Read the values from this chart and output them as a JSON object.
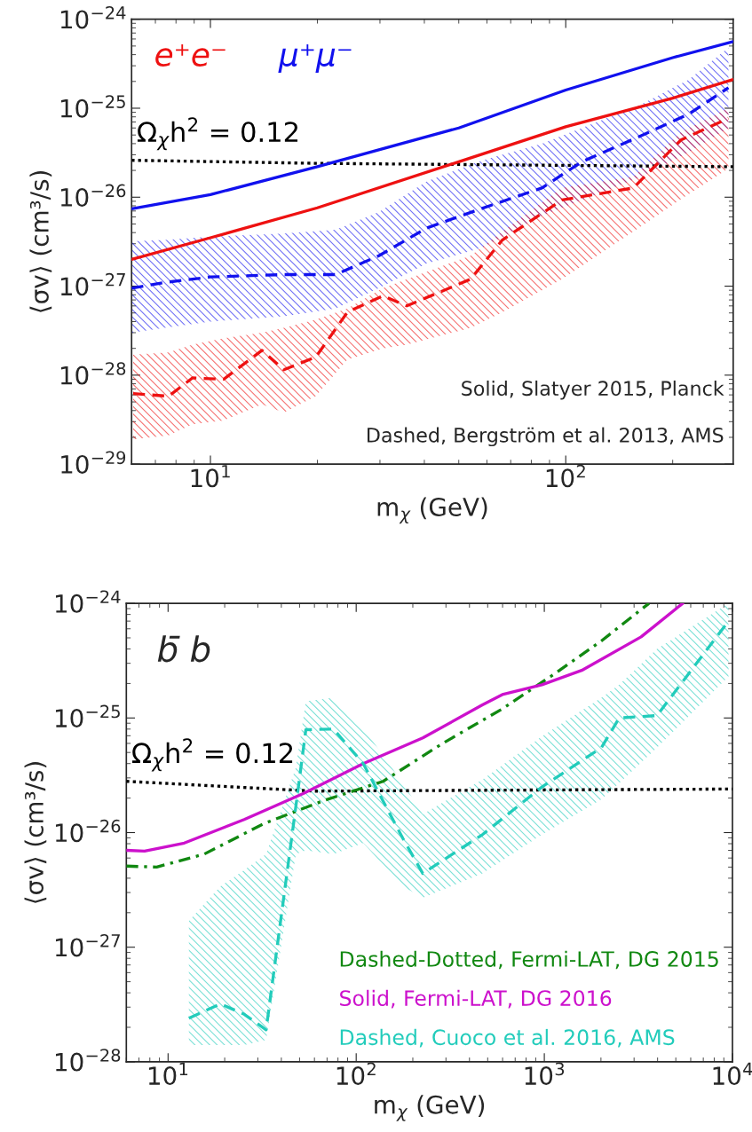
{
  "chart_data": [
    {
      "type": "line",
      "xlabel": "m$_{χ}$ (GeV)",
      "ylabel": "⟨σv⟩ (cm³/s)",
      "log": "xy",
      "xlim": [
        6,
        296
      ],
      "xticks": [
        {
          "value": 10,
          "label": "10$^{1}$"
        },
        {
          "value": 100,
          "label": "10$^{2}$"
        }
      ],
      "ylim": [
        1e-29,
        1e-24
      ],
      "yticks": [
        {
          "value": 1e-29,
          "label": "10$^{−29}$"
        },
        {
          "value": 1e-28,
          "label": "10$^{−28}$"
        },
        {
          "value": 1e-27,
          "label": "10$^{−27}$"
        },
        {
          "value": 1e-26,
          "label": "10$^{−26}$"
        },
        {
          "value": 1e-25,
          "label": "10$^{−25}$"
        },
        {
          "value": 1e-24,
          "label": "10$^{−24}$"
        }
      ],
      "grid": false,
      "legend": "top left",
      "series": [
        {
          "name": "Ω$_{χ}$h$^{2}$ = 0.12",
          "color": "#000000",
          "line_style": "dotted",
          "x": [
            6,
            20,
            296
          ],
          "values": [
            2.6e-26,
            2.4e-26,
            2.2e-26
          ]
        },
        {
          "name": "e⁺e⁻",
          "color": "#ee1111",
          "line_style": "solid",
          "x": [
            6,
            10,
            20,
            50,
            100,
            200,
            296
          ],
          "values": [
            2e-27,
            3.5e-27,
            7.6e-27,
            2.5e-26,
            6.2e-26,
            1.3e-25,
            2.1e-25
          ]
        },
        {
          "name": "μ⁺μ⁻",
          "color": "#1111ee",
          "line_style": "solid",
          "x": [
            6,
            10,
            20,
            50,
            100,
            200,
            296
          ],
          "values": [
            7.4e-27,
            1.07e-26,
            2.2e-26,
            6e-26,
            1.6e-25,
            3.7e-25,
            5.6e-25
          ]
        },
        {
          "color": "#1111ee",
          "line_style": "dashed",
          "x": [
            6.0,
            7.44,
            10,
            16.1,
            22.5,
            29.8,
            40.6,
            58.2,
            85.7,
            111,
            163,
            222,
            287
          ],
          "values": [
            9.5e-28,
            1.1e-27,
            1.27e-27,
            1.35e-27,
            1.35e-27,
            2.2e-27,
            4.5e-27,
            7.5e-27,
            1.27e-26,
            2.5e-26,
            4.9e-26,
            8.6e-26,
            1.7e-25
          ],
          "upper": [
            3.2e-27,
            3.3e-27,
            3.6e-27,
            3.9e-27,
            4.3e-27,
            6.8e-27,
            1.5e-26,
            2.6e-26,
            4e-26,
            6e-26,
            1.1e-25,
            2.1e-25,
            4.8e-25
          ],
          "lower": [
            3e-28,
            3.4e-28,
            4e-28,
            4.6e-28,
            5.6e-28,
            9.5e-28,
            1.8e-27,
            2.7e-27,
            6.2e-27,
            9.3e-27,
            1.7e-26,
            3.2e-26,
            6e-26
          ]
        },
        {
          "color": "#ee1111",
          "line_style": "dashed",
          "x": [
            6.06,
            7.63,
            8.9,
            10.9,
            13.97,
            16.1,
            19.8,
            24.3,
            30.6,
            35.7,
            54.0,
            66.3,
            97.5,
            155,
            211,
            287
          ],
          "values": [
            6.2e-29,
            5.8e-29,
            9.3e-29,
            9e-29,
            1.9e-28,
            1.15e-28,
            1.6e-28,
            5.1e-28,
            7.8e-28,
            6e-28,
            1.2e-27,
            3.3e-27,
            9.3e-27,
            1.27e-26,
            4.4e-26,
            7.7e-26
          ],
          "upper": [
            1.7e-28,
            1.8e-28,
            2.2e-28,
            2.6e-28,
            3e-28,
            3.4e-28,
            4.2e-28,
            5.6e-28,
            9.5e-28,
            1.2e-27,
            2.2e-27,
            4.1e-27,
            1.27e-26,
            1.7e-26,
            5.4e-26,
            1e-25
          ],
          "lower": [
            1.9e-29,
            2.1e-29,
            2.8e-29,
            3.1e-29,
            4.7e-29,
            3.8e-29,
            5.8e-29,
            1.5e-28,
            2e-28,
            2.2e-28,
            3.4e-28,
            5.1e-28,
            1.2e-27,
            4.1e-27,
            9.5e-27,
            2.1e-26
          ]
        }
      ],
      "annotations": [
        "Solid, Slatyer 2015, Planck",
        "Dashed, Bergström et al. 2013, AMS"
      ]
    },
    {
      "type": "line",
      "xlabel": "m$_{χ}$ (GeV)",
      "ylabel": "⟨σv⟩ (cm³/s)",
      "log": "xy",
      "xlim": [
        6,
        10000
      ],
      "xticks": [
        {
          "value": 10,
          "label": "10$^{1}$"
        },
        {
          "value": 100,
          "label": "10$^{2}$"
        },
        {
          "value": 1000,
          "label": "10$^{3}$"
        },
        {
          "value": 10000,
          "label": "10$^{4}$"
        }
      ],
      "ylim": [
        1e-28,
        1e-24
      ],
      "yticks": [
        {
          "value": 1e-28,
          "label": "10$^{−28}$"
        },
        {
          "value": 1e-27,
          "label": "10$^{−27}$"
        },
        {
          "value": 1e-26,
          "label": "10$^{−26}$"
        },
        {
          "value": 1e-25,
          "label": "10$^{−25}$"
        },
        {
          "value": 1e-24,
          "label": "10$^{−24}$"
        }
      ],
      "grid": false,
      "legend": "bottom right",
      "series": [
        {
          "name": "Ω$_{χ}$h$^{2}$ = 0.12",
          "color": "#000000",
          "line_style": "dotted",
          "x": [
            6,
            60,
            10000
          ],
          "values": [
            2.8e-26,
            2.3e-26,
            2.4e-26
          ]
        },
        {
          "name": "Dashed-Dotted, Fermi-LAT, DG 2015",
          "color": "#118811",
          "line_style": "dashdot",
          "x": [
            6.0,
            8.7,
            15.6,
            32.4,
            67.1,
            139,
            288,
            598,
            1122,
            2010,
            3600
          ],
          "values": [
            5.1e-27,
            5e-27,
            6.5e-27,
            1.2e-26,
            1.9e-26,
            2.8e-26,
            6e-26,
            1.2e-25,
            2.4e-25,
            4.7e-25,
            1e-24
          ]
        },
        {
          "name": "Solid, Fermi-LAT, DG 2016",
          "color": "#cc11cc",
          "line_style": "solid",
          "x": [
            6.0,
            7.5,
            12.2,
            25.4,
            52.6,
            109,
            226,
            469,
            598,
            971,
            1580,
            3270,
            5440
          ],
          "values": [
            7e-27,
            6.9e-27,
            8.1e-27,
            1.3e-26,
            2.2e-26,
            4e-26,
            6.7e-26,
            1.3e-25,
            1.6e-25,
            1.95e-25,
            2.6e-25,
            5.1e-25,
            1e-24
          ]
        },
        {
          "name": "Dashed, Cuoco et al. 2016, AMS",
          "color": "#22ccbb",
          "line_style": "dashed",
          "x": [
            12.9,
            19.0,
            25.4,
            33.2,
            47.8,
            54.0,
            75.7,
            109,
            177,
            226,
            469,
            971,
            2010,
            2500,
            3970,
            9530
          ],
          "values": [
            2.4e-28,
            3.2e-28,
            2.6e-28,
            1.9e-28,
            1.7e-26,
            7.9e-26,
            8e-26,
            4e-26,
            8.9e-27,
            4.4e-27,
            9.6e-27,
            2.5e-26,
            5.5e-26,
            1e-25,
            1.05e-25,
            7e-25
          ],
          "upper": [
            1.7e-27,
            3.4e-27,
            4.7e-27,
            6.5e-27,
            3.7e-26,
            1.4e-25,
            1.5e-25,
            8.2e-26,
            2.7e-26,
            1.45e-26,
            2.9e-26,
            6.9e-26,
            1.5e-25,
            1.95e-25,
            4e-25,
            1e-24
          ],
          "lower": [
            1.4e-28,
            1.4e-28,
            1.4e-28,
            1.55e-28,
            6.5e-27,
            7e-27,
            6.5e-27,
            8.1e-27,
            3.4e-27,
            2.7e-27,
            4.4e-27,
            9.6e-27,
            1.95e-26,
            2.7e-26,
            5.5e-26,
            2.3e-25
          ]
        }
      ],
      "annotations": [
        "b̄ b"
      ]
    }
  ]
}
